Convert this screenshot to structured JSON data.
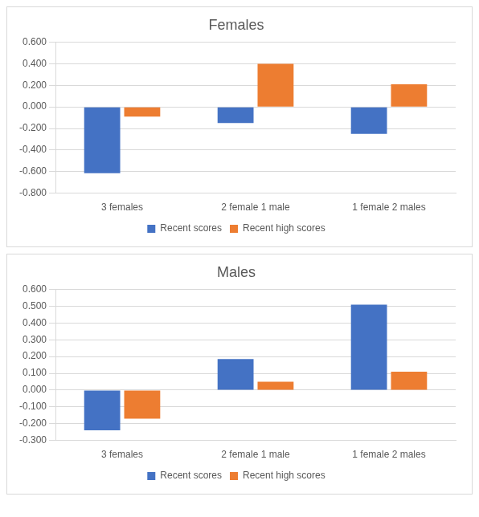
{
  "chart_data": [
    {
      "type": "bar",
      "title": "Females",
      "categories": [
        "3 females",
        "2 female 1 male",
        "1 female 2 males"
      ],
      "series": [
        {
          "name": "Recent scores",
          "color": "#4472c4",
          "values": [
            -0.615,
            -0.15,
            -0.25
          ]
        },
        {
          "name": "Recent high scores",
          "color": "#ed7d31",
          "values": [
            -0.09,
            0.4,
            0.21
          ]
        }
      ],
      "ylim": [
        -0.8,
        0.6
      ],
      "yticks": [
        {
          "value": -0.8,
          "label": "-0.800"
        },
        {
          "value": -0.6,
          "label": "-0.600"
        },
        {
          "value": -0.4,
          "label": "-0.400"
        },
        {
          "value": -0.2,
          "label": "-0.200"
        },
        {
          "value": 0,
          "label": "0.000"
        },
        {
          "value": 0.2,
          "label": "0.200"
        },
        {
          "value": 0.4,
          "label": "0.400"
        },
        {
          "value": 0.6,
          "label": "0.600"
        }
      ],
      "grid": true,
      "legend": "bottom"
    },
    {
      "type": "bar",
      "title": "Males",
      "categories": [
        "3 females",
        "2 female 1 male",
        "1 female 2 males"
      ],
      "series": [
        {
          "name": "Recent scores",
          "color": "#4472c4",
          "values": [
            -0.24,
            0.185,
            0.51
          ]
        },
        {
          "name": "Recent high scores",
          "color": "#ed7d31",
          "values": [
            -0.17,
            0.05,
            0.11
          ]
        }
      ],
      "ylim": [
        -0.3,
        0.6
      ],
      "yticks": [
        {
          "value": -0.3,
          "label": "-0.300"
        },
        {
          "value": -0.2,
          "label": "-0.200"
        },
        {
          "value": -0.1,
          "label": "-0.100"
        },
        {
          "value": 0,
          "label": "0.000"
        },
        {
          "value": 0.1,
          "label": "0.100"
        },
        {
          "value": 0.2,
          "label": "0.200"
        },
        {
          "value": 0.3,
          "label": "0.300"
        },
        {
          "value": 0.4,
          "label": "0.400"
        },
        {
          "value": 0.5,
          "label": "0.500"
        },
        {
          "value": 0.6,
          "label": "0.600"
        }
      ],
      "grid": true,
      "legend": "bottom"
    }
  ]
}
